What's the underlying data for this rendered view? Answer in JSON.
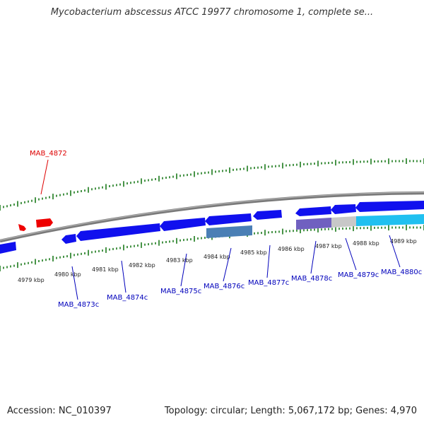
{
  "title": "Mycobacterium abscessus ATCC 19977 chromosome 1, complete se...",
  "footer": {
    "accession": "Accession: NC_010397",
    "topology": "Topology: circular; Length: 5,067,172 bp; Genes: 4,970"
  },
  "colors": {
    "forward_gene_label": "#dd0000",
    "reverse_gene_label": "#0000bb",
    "tick": "#1a7a1a",
    "backbone": "#808080"
  },
  "scale_labels": [
    "4979 kbp",
    "4980 kbp",
    "4981 kbp",
    "4982 kbp",
    "4983 kbp",
    "4984 kbp",
    "4985 kbp",
    "4986 kbp",
    "4987 kbp",
    "4988 kbp",
    "4989 kbp"
  ],
  "genes": {
    "forward": [
      "MAB_4872"
    ],
    "reverse": [
      "MAB_4873c",
      "MAB_4874c",
      "MAB_4875c",
      "MAB_4876c",
      "MAB_4877c",
      "MAB_4878c",
      "MAB_4879c",
      "MAB_4880c"
    ]
  }
}
